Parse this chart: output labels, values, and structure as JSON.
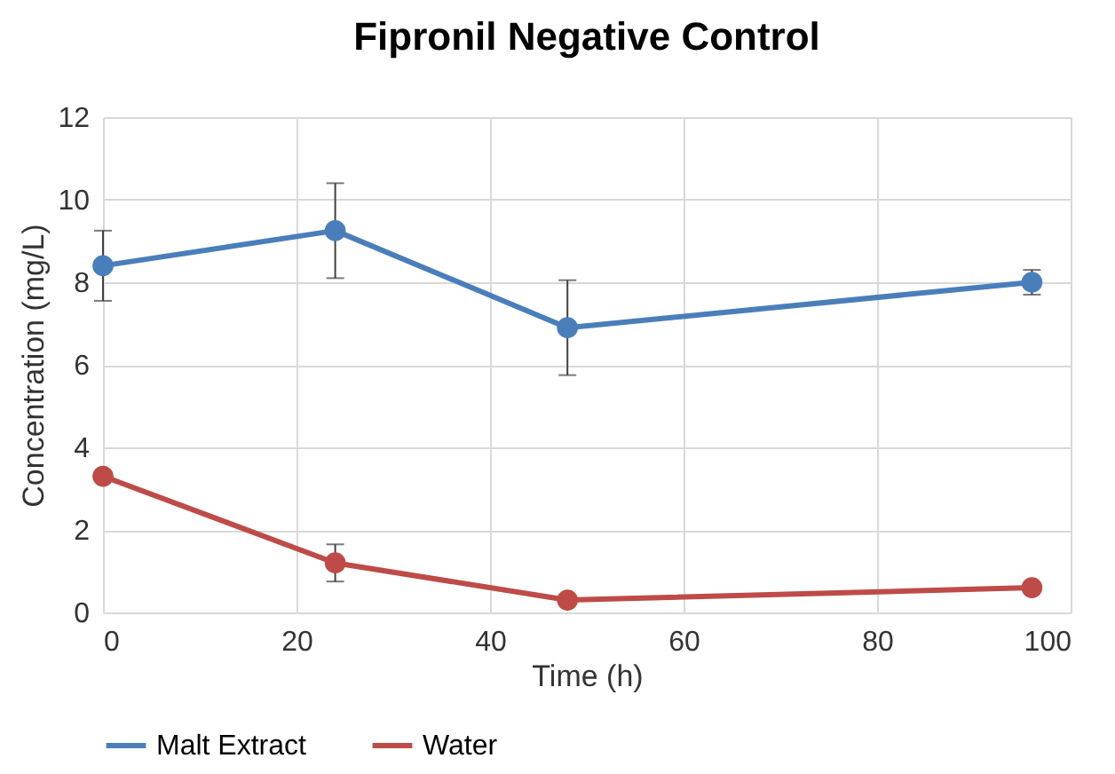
{
  "chart_data": {
    "type": "line",
    "title": "Fipronil Negative Control",
    "xlabel": "Time (h)",
    "ylabel": "Concentration (mg/L)",
    "x": [
      0,
      24,
      48,
      96
    ],
    "series": [
      {
        "name": "Malt Extract",
        "color": "#4a7ebb",
        "values": [
          8.4,
          9.25,
          6.9,
          8.0
        ],
        "errors": [
          0.85,
          1.15,
          1.15,
          0.3
        ]
      },
      {
        "name": "Water",
        "color": "#be4b48",
        "values": [
          3.3,
          1.2,
          0.3,
          0.6
        ],
        "errors": [
          null,
          0.45,
          null,
          null
        ]
      }
    ],
    "xlim": [
      0,
      100
    ],
    "xticks": [
      0,
      20,
      40,
      60,
      80,
      100
    ],
    "ylim": [
      0,
      12
    ],
    "yticks": [
      0,
      2,
      4,
      6,
      8,
      10,
      12
    ],
    "grid": true,
    "legend": "bottom",
    "marker": "circle",
    "line_style": "solid"
  }
}
